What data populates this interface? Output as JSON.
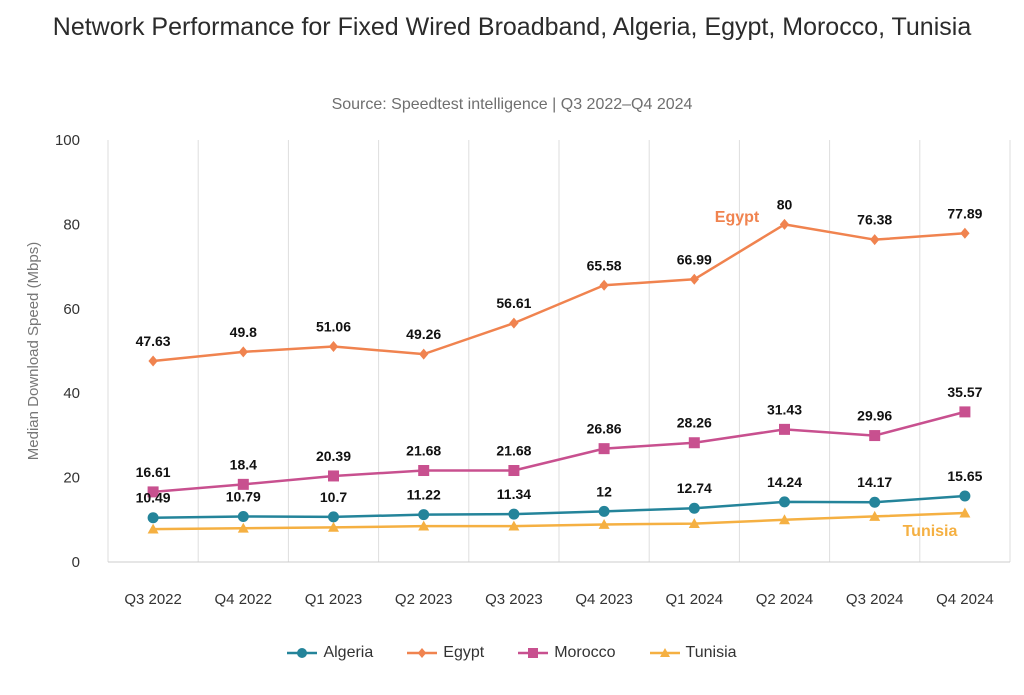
{
  "title": "Network Performance for Fixed Wired Broadband, Algeria, Egypt, Morocco, Tunisia",
  "subtitle": "Source: Speedtest intelligence | Q3 2022–Q4 2024",
  "chart_data": {
    "type": "line",
    "title": "Network Performance for Fixed Wired Broadband, Algeria, Egypt, Morocco, Tunisia",
    "subtitle": "Source: Speedtest intelligence | Q3 2022–Q4 2024",
    "ylabel": "Median Download Speed (Mbps)",
    "xlabel": "",
    "ylim": [
      0,
      100
    ],
    "yticks": [
      0,
      20,
      40,
      60,
      80,
      100
    ],
    "grid": "vertical",
    "legend": "bottom",
    "categories": [
      "Q3 2022",
      "Q4 2022",
      "Q1 2023",
      "Q2 2023",
      "Q3 2023",
      "Q4 2023",
      "Q1 2024",
      "Q2 2024",
      "Q3 2024",
      "Q4 2024"
    ],
    "series": [
      {
        "name": "Algeria",
        "color": "#24849a",
        "marker": "circle",
        "values": [
          10.49,
          10.79,
          10.7,
          11.22,
          11.34,
          12,
          12.74,
          14.24,
          14.17,
          15.65
        ],
        "labels": [
          "10.49",
          "10.79",
          "10.7",
          "11.22",
          "11.34",
          "12",
          "12.74",
          "14.24",
          "14.17",
          "15.65"
        ],
        "inline_label": ""
      },
      {
        "name": "Egypt",
        "color": "#f0834f",
        "marker": "diamond",
        "values": [
          47.63,
          49.8,
          51.06,
          49.26,
          56.61,
          65.58,
          66.99,
          80,
          76.38,
          77.89
        ],
        "labels": [
          "47.63",
          "49.8",
          "51.06",
          "49.26",
          "56.61",
          "65.58",
          "66.99",
          "80",
          "76.38",
          "77.89"
        ],
        "inline_label": "Egypt"
      },
      {
        "name": "Morocco",
        "color": "#c8508f",
        "marker": "square",
        "values": [
          16.61,
          18.4,
          20.39,
          21.68,
          21.68,
          26.86,
          28.26,
          31.43,
          29.96,
          35.57
        ],
        "labels": [
          "16.61",
          "18.4",
          "20.39",
          "21.68",
          "21.68",
          "26.86",
          "28.26",
          "31.43",
          "29.96",
          "35.57"
        ],
        "inline_label": ""
      },
      {
        "name": "Tunisia",
        "color": "#f5b042",
        "marker": "triangle",
        "values": [
          7.8,
          8.0,
          8.2,
          8.5,
          8.5,
          8.9,
          9.1,
          10.0,
          10.8,
          11.6
        ],
        "labels": [],
        "inline_label": "Tunisia"
      }
    ]
  }
}
